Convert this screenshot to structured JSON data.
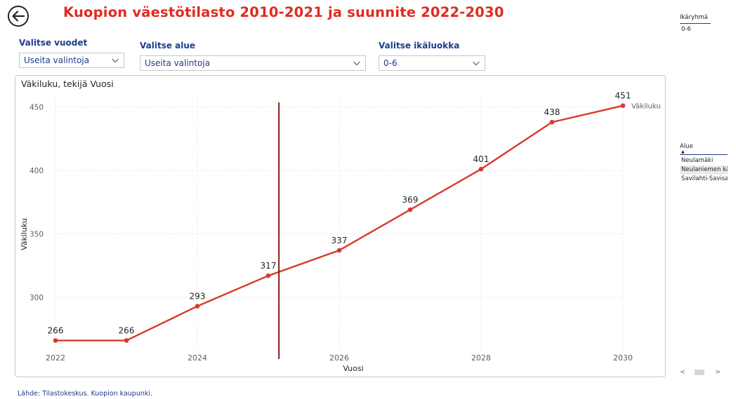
{
  "header": {
    "title": "Kuopion väestötilasto 2010-2021 ja suunnite 2022-2030",
    "back_icon": "back-arrow-circle-icon"
  },
  "filters": [
    {
      "label": "Valitse vuodet",
      "value": "Useita valintoja"
    },
    {
      "label": "Valitse alue",
      "value": "Useita valintoja"
    },
    {
      "label": "Valitse ikäluokka",
      "value": "0-6"
    }
  ],
  "side_slicers": {
    "ikaryhma": {
      "header": "Ikäryhmä",
      "items": [
        "0-6"
      ]
    },
    "alue": {
      "header": "Alue",
      "items": [
        "Neulamäki",
        "Neulaniemen kär",
        "Savilahti-Savisaar"
      ]
    }
  },
  "footer": {
    "source": "Lähde: Tilastokeskus. Kuopion kaupunki."
  },
  "scrollbar": {
    "left": "<",
    "right": ">"
  },
  "chart_data": {
    "type": "line",
    "title": "Väkiluku, tekijä Vuosi",
    "xlabel": "Vuosi",
    "ylabel": "Väkiluku",
    "x_ticks": [
      2022,
      2024,
      2026,
      2028,
      2030
    ],
    "y_ticks": [
      300,
      350,
      400,
      450
    ],
    "xlim": [
      2022,
      2030
    ],
    "ylim": [
      258,
      458
    ],
    "grid": true,
    "series": [
      {
        "name": "Väkiluku",
        "color": "#d83a2e",
        "x": [
          2022,
          2023,
          2024,
          2025,
          2026,
          2027,
          2028,
          2029,
          2030
        ],
        "values": [
          266,
          266,
          293,
          317,
          337,
          369,
          401,
          438,
          451
        ]
      }
    ],
    "reference_line": {
      "x": 2025.15,
      "color": "#8b1a1a"
    }
  }
}
